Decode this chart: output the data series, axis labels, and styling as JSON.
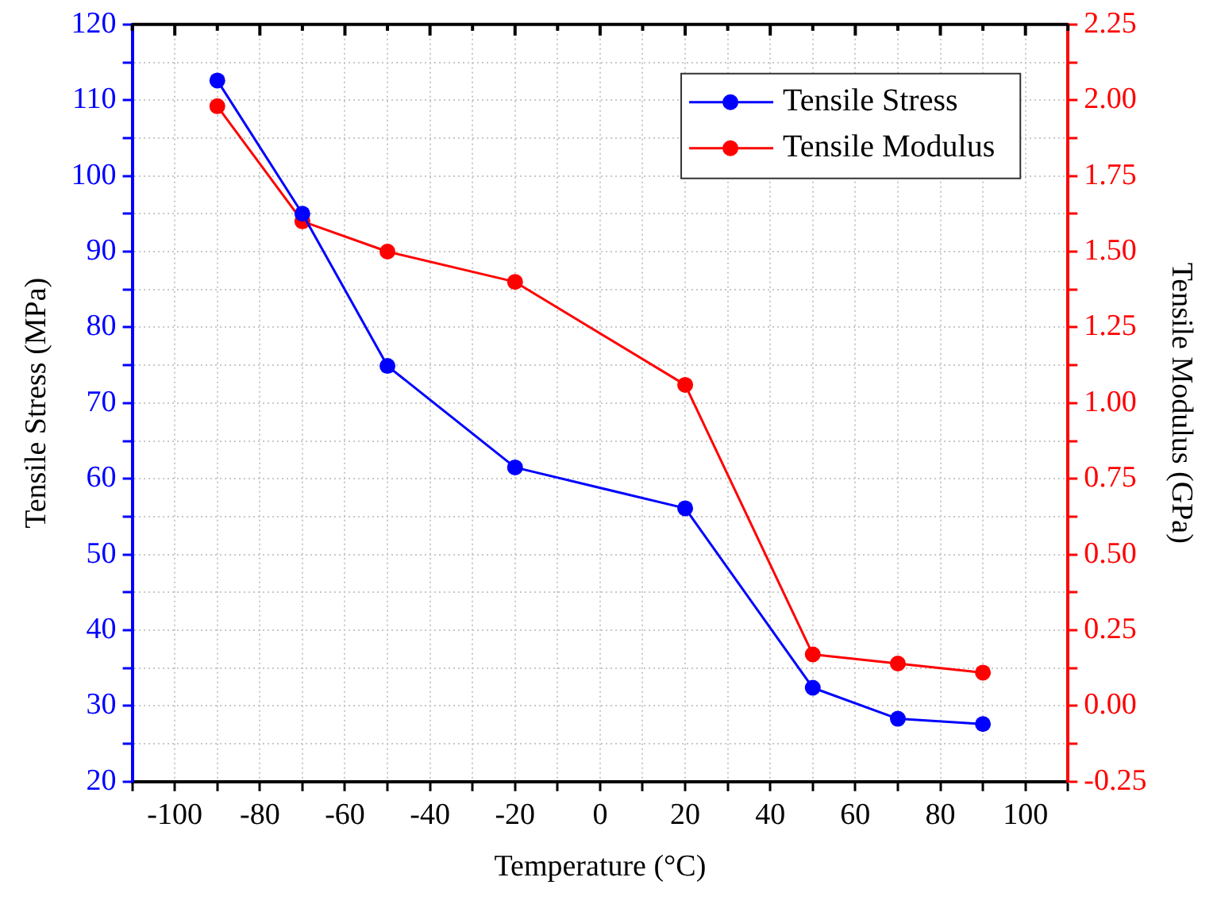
{
  "chart_data": {
    "type": "line",
    "xlabel": "Temperature (°C)",
    "ylabel": "Tensile Stress (MPa)",
    "y2label": "Tensile Modulus (GPa)",
    "x": [
      -90,
      -70,
      -50,
      -20,
      20,
      50,
      70,
      90
    ],
    "series": [
      {
        "name": "Tensile Stress",
        "color": "#0000ff",
        "values": [
          112.6,
          95.0,
          74.9,
          61.5,
          56.1,
          32.4,
          28.3,
          27.6
        ]
      },
      {
        "name": "Tensile Modulus",
        "color": "#ff0000",
        "axis": "y2",
        "values": [
          1.98,
          1.6,
          1.5,
          1.4,
          1.06,
          0.17,
          0.14,
          0.11
        ]
      }
    ],
    "xlim": [
      -110,
      110
    ],
    "xticks": [
      {
        "value": -110,
        "label": null
      },
      -100,
      {
        "value": -90,
        "label": null
      },
      -80,
      {
        "value": -70,
        "label": null
      },
      -60,
      {
        "value": -50,
        "label": null
      },
      -40,
      {
        "value": -30,
        "label": null
      },
      -20,
      {
        "value": -10,
        "label": null
      },
      0,
      {
        "value": 10,
        "label": null
      },
      20,
      {
        "value": 30,
        "label": null
      },
      40,
      {
        "value": 50,
        "label": null
      },
      60,
      {
        "value": 70,
        "label": null
      },
      80,
      {
        "value": 90,
        "label": null
      },
      100,
      {
        "value": 110,
        "label": null
      }
    ],
    "ylim": [
      20,
      120
    ],
    "yticks": [
      20,
      {
        "value": 25,
        "label": null
      },
      30,
      {
        "value": 35,
        "label": null
      },
      40,
      {
        "value": 45,
        "label": null
      },
      50,
      {
        "value": 55,
        "label": null
      },
      60,
      {
        "value": 65,
        "label": null
      },
      70,
      {
        "value": 75,
        "label": null
      },
      80,
      {
        "value": 85,
        "label": null
      },
      90,
      {
        "value": 95,
        "label": null
      },
      100,
      {
        "value": 105,
        "label": null
      },
      110,
      {
        "value": 115,
        "label": null
      },
      120
    ],
    "y2lim": [
      -0.25,
      2.25
    ],
    "y2ticks": [
      {
        "value": -0.25,
        "label": "-0.25"
      },
      {
        "value": -0.125,
        "label": null
      },
      {
        "value": 0,
        "label": "0.00"
      },
      {
        "value": 0.125,
        "label": null
      },
      {
        "value": 0.25,
        "label": "0.25"
      },
      {
        "value": 0.375,
        "label": null
      },
      {
        "value": 0.5,
        "label": "0.50"
      },
      {
        "value": 0.625,
        "label": null
      },
      {
        "value": 0.75,
        "label": "0.75"
      },
      {
        "value": 0.875,
        "label": null
      },
      {
        "value": 1,
        "label": "1.00"
      },
      {
        "value": 1.125,
        "label": null
      },
      {
        "value": 1.25,
        "label": "1.25"
      },
      {
        "value": 1.375,
        "label": null
      },
      {
        "value": 1.5,
        "label": "1.50"
      },
      {
        "value": 1.625,
        "label": null
      },
      {
        "value": 1.75,
        "label": "1.75"
      },
      {
        "value": 1.875,
        "label": null
      },
      {
        "value": 2,
        "label": "2.00"
      },
      {
        "value": 2.125,
        "label": null
      },
      {
        "value": 2.25,
        "label": "2.25"
      }
    ],
    "grid": true,
    "legend": "top right",
    "marker": "circle",
    "line_style": "solid"
  }
}
